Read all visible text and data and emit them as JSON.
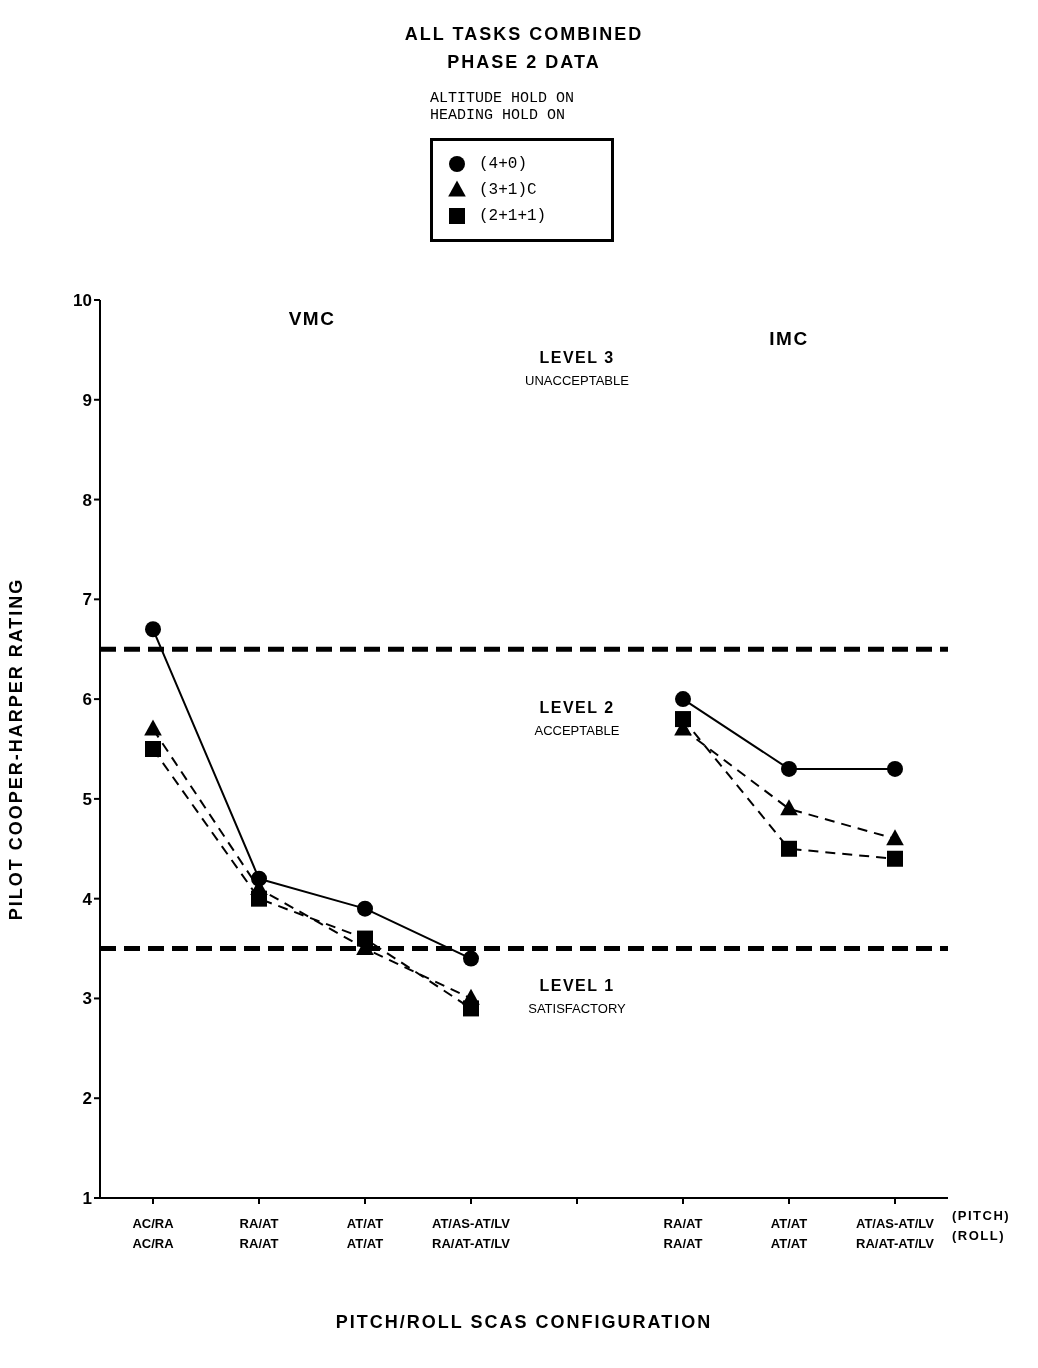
{
  "chart_data": {
    "type": "line",
    "title": "ALL TASKS COMBINED",
    "subtitle": "PHASE 2 DATA",
    "legend_title": "ALTITUDE HOLD ON\nHEADING HOLD ON",
    "xlabel": "PITCH/ROLL SCAS CONFIGURATION",
    "ylabel": "PILOT COOPER-HARPER RATING",
    "categories": [
      "AC/RA\nAC/RA",
      "RA/AT\nRA/AT",
      "AT/AT\nAT/AT",
      "AT/AS-AT/LV\nRA/AT-AT/LV",
      null,
      "RA/AT\nRA/AT",
      "AT/AT\nAT/AT",
      "AT/AS-AT/LV\nRA/AT-AT/LV"
    ],
    "series": [
      {
        "name": "(4+0)",
        "color": "#000000",
        "marker": "circle",
        "line_style": "solid",
        "values": [
          6.7,
          4.2,
          3.9,
          3.4,
          null,
          6.0,
          5.3,
          5.3
        ]
      },
      {
        "name": "(3+1)C",
        "color": "#000000",
        "marker": "triangle",
        "line_style": "dashed",
        "values": [
          5.7,
          4.1,
          3.5,
          3.0,
          null,
          5.7,
          4.9,
          4.6
        ]
      },
      {
        "name": "(2+1+1)",
        "color": "#000000",
        "marker": "square",
        "line_style": "dashed",
        "values": [
          5.5,
          4.0,
          3.6,
          2.9,
          null,
          5.8,
          4.5,
          4.4
        ]
      }
    ],
    "ylim": [
      1,
      10
    ],
    "yticks": [
      1,
      2,
      3,
      4,
      5,
      6,
      7,
      8,
      9,
      10
    ],
    "legend": "top",
    "ref_lines": [
      {
        "axis": "y",
        "value": 6.5,
        "color": "#000000",
        "line_style": "dashed"
      },
      {
        "axis": "y",
        "value": 3.5,
        "color": "#000000",
        "line_style": "dashed"
      }
    ],
    "annotations": [
      "VMC",
      "IMC",
      "LEVEL 3\nUNACCEPTABLE",
      "LEVEL 2\nACCEPTABLE",
      "LEVEL 1\nSATISFACTORY",
      "(PITCH)",
      "(ROLL)"
    ]
  }
}
